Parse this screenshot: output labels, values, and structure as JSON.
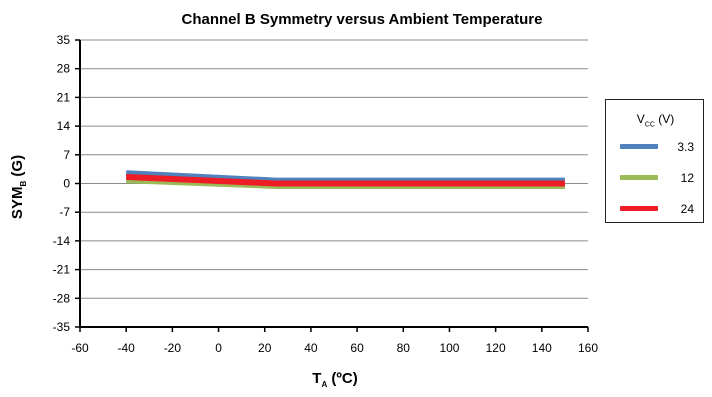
{
  "chart_data": {
    "type": "line",
    "title": "Channel B Symmetry versus Ambient Temperature",
    "ylabel": {
      "main": "SYM",
      "sub": "B",
      "unit": " (G)"
    },
    "xlabel": {
      "main": "T",
      "sub": "A",
      "unit": " (ºC)"
    },
    "xlim": [
      -60,
      160
    ],
    "ylim": [
      -35,
      35
    ],
    "xticks": [
      -60,
      -40,
      -20,
      0,
      20,
      40,
      60,
      80,
      100,
      120,
      140,
      160
    ],
    "yticks": [
      35,
      28,
      21,
      14,
      7,
      0,
      -7,
      -14,
      -21,
      -28,
      -35
    ],
    "grid": "horizontal",
    "legend": {
      "title_main": "V",
      "title_sub": "CC",
      "title_unit": " (V)",
      "placement": "right"
    },
    "series": [
      {
        "name": "3.3",
        "color": "#4f81bd",
        "x": [
          -40,
          25,
          150
        ],
        "y": [
          2.5,
          0.7,
          0.7
        ]
      },
      {
        "name": "12",
        "color": "#9bbb59",
        "x": [
          -40,
          25,
          150
        ],
        "y": [
          0.8,
          -0.6,
          -0.6
        ]
      },
      {
        "name": "24",
        "color": "#ee1c25",
        "x": [
          -40,
          25,
          150
        ],
        "y": [
          1.6,
          0.0,
          0.0
        ]
      }
    ]
  }
}
